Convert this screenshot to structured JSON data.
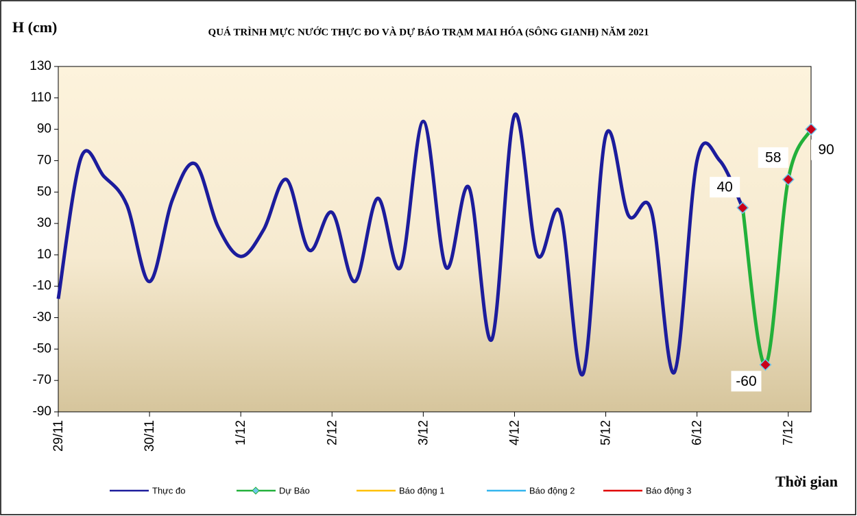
{
  "chart_data": {
    "type": "line",
    "title": "QUÁ TRÌNH MỰC NƯỚC THỰC ĐO VÀ DỰ BÁO TRẠM MAI HÓA (SÔNG GIANH) NĂM  2021",
    "y_label": "H (cm)",
    "x_label": "Thời gian",
    "xlim": [
      0,
      198
    ],
    "xticks": [
      {
        "value": 0,
        "label": "29/11"
      },
      {
        "value": 24,
        "label": "30/11"
      },
      {
        "value": 48,
        "label": "1/12"
      },
      {
        "value": 72,
        "label": "2/12"
      },
      {
        "value": 96,
        "label": "3/12"
      },
      {
        "value": 120,
        "label": "4/12"
      },
      {
        "value": 144,
        "label": "5/12"
      },
      {
        "value": 168,
        "label": "6/12"
      },
      {
        "value": 192,
        "label": "7/12"
      }
    ],
    "ylim": [
      -90,
      130
    ],
    "yticks": [
      -90,
      -70,
      -50,
      -30,
      -10,
      10,
      30,
      50,
      70,
      90,
      110,
      130
    ],
    "series": [
      {
        "name": "Thực đo",
        "color": "#1c1c9c",
        "x": [
          0,
          6,
          12,
          18,
          24,
          30,
          36,
          42,
          48,
          54,
          60,
          66,
          72,
          78,
          84,
          90,
          96,
          102,
          108,
          114,
          120,
          126,
          132,
          138,
          144,
          150,
          156,
          162,
          168,
          174,
          180
        ],
        "values": [
          -18,
          72,
          60,
          42,
          -7,
          45,
          68,
          28,
          9,
          26,
          58,
          13,
          37,
          -7,
          46,
          2,
          95,
          2,
          53,
          -44,
          99,
          10,
          37,
          -66,
          86,
          35,
          38,
          -65,
          70,
          70,
          40
        ]
      },
      {
        "name": "Dự Báo",
        "color": "#22b03a",
        "marker_color": "#c8001a",
        "x": [
          180,
          186,
          192,
          198
        ],
        "values": [
          40,
          -60,
          58,
          90
        ]
      },
      {
        "name": "Báo động 1",
        "color": "#ffc000",
        "x": [],
        "values": []
      },
      {
        "name": "Báo động 2",
        "color": "#33b5ee",
        "x": [],
        "values": []
      },
      {
        "name": "Báo động 3",
        "color": "#e00000",
        "x": [],
        "values": []
      }
    ]
  }
}
